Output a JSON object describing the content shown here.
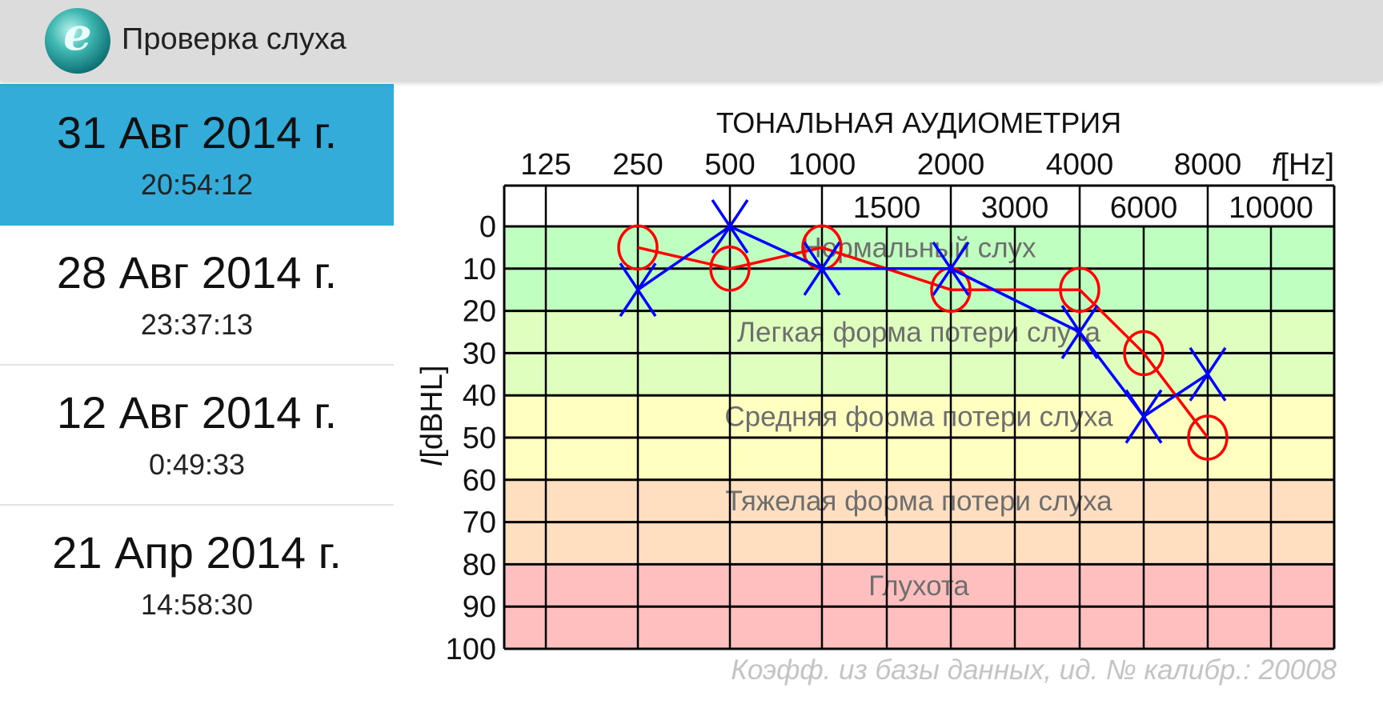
{
  "header": {
    "title": "Проверка слуха",
    "logo_icon": "ear-swirl-logo"
  },
  "sidebar": {
    "selected_index": 0,
    "selected_color": "#33acd9",
    "items": [
      {
        "date": "31 Авг 2014 г.",
        "time": "20:54:12"
      },
      {
        "date": "28 Авг 2014 г.",
        "time": "23:37:13"
      },
      {
        "date": "12 Авг 2014 г.",
        "time": "0:49:33"
      },
      {
        "date": "21 Апр 2014 г.",
        "time": "14:58:30"
      }
    ]
  },
  "chart_data": {
    "type": "line",
    "title": "ТОНАЛЬНАЯ АУДИОМЕТРИЯ",
    "xlabel_italic": "f",
    "xlabel_unit": "[Hz]",
    "ylabel_italic": "I",
    "ylabel_unit": "[dBHL]",
    "x_ticks_top": [
      "125",
      "250",
      "500",
      "1000",
      "2000",
      "4000",
      "8000"
    ],
    "x_ticks_inner": [
      "1500",
      "3000",
      "6000",
      "10000"
    ],
    "y_ticks": [
      "0",
      "10",
      "20",
      "30",
      "40",
      "50",
      "60",
      "70",
      "80",
      "90",
      "100"
    ],
    "ylim": [
      0,
      100
    ],
    "y_inverted": true,
    "grid": true,
    "bands": [
      {
        "label": "Нормальный слух",
        "from": 0,
        "to": 20,
        "color": "#bfffbf"
      },
      {
        "label": "Легкая форма потери слуха",
        "from": 20,
        "to": 40,
        "color": "#dfffbf"
      },
      {
        "label": "Средняя форма потери слуха",
        "from": 40,
        "to": 60,
        "color": "#ffffbf"
      },
      {
        "label": "Тяжелая форма потери слуха",
        "from": 60,
        "to": 80,
        "color": "#ffdfbf"
      },
      {
        "label": "Глухота",
        "from": 80,
        "to": 100,
        "color": "#ffbfbf"
      }
    ],
    "series": [
      {
        "marker": "circle",
        "color": "#ff0000",
        "x": [
          250,
          500,
          1000,
          2000,
          4000,
          6000,
          8000
        ],
        "y": [
          5,
          10,
          5,
          15,
          15,
          30,
          50
        ]
      },
      {
        "marker": "cross",
        "color": "#0000ff",
        "x": [
          250,
          500,
          1000,
          2000,
          4000,
          6000,
          8000
        ],
        "y": [
          15,
          0,
          10,
          10,
          25,
          45,
          35
        ]
      }
    ]
  },
  "footer": {
    "note": "Коэфф. из базы данных, ид. № калибр.: 20008"
  }
}
